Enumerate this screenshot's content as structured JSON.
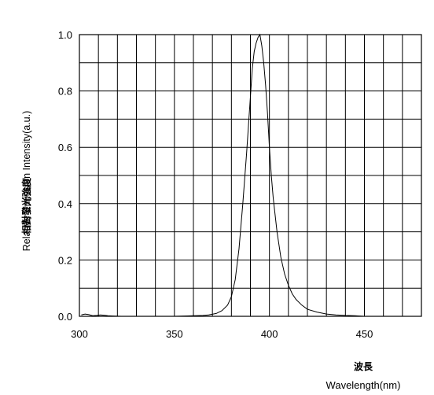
{
  "chart_data": {
    "type": "line",
    "xlabel_jp": "波長",
    "xlabel": "Wavelength(nm)",
    "ylabel_jp": "相對發光強度",
    "ylabel": "Relative Emission Intensity(a.u.)",
    "xlim": [
      300,
      480
    ],
    "ylim": [
      0.0,
      1.0
    ],
    "x_ticks": [
      300,
      350,
      400,
      450
    ],
    "x_tick_labels": [
      "300",
      "350",
      "400",
      "450"
    ],
    "y_ticks": [
      0.0,
      0.2,
      0.4,
      0.6,
      0.8,
      1.0
    ],
    "y_tick_labels": [
      "0.0",
      "0.2",
      "0.4",
      "0.6",
      "0.8",
      "1.0"
    ],
    "grid": true,
    "series": [
      {
        "color": "#000000",
        "x": [
          301,
          303,
          305,
          307,
          309,
          311,
          313,
          315,
          318,
          322,
          330,
          340,
          350,
          360,
          365,
          368,
          372,
          375,
          378,
          380,
          382,
          384,
          386,
          388,
          390,
          391,
          392,
          393,
          394,
          395,
          396,
          397,
          398,
          399,
          400,
          401,
          402,
          404,
          406,
          408,
          410,
          412,
          414,
          417,
          420,
          425,
          430,
          435,
          440,
          445,
          450
        ],
        "y": [
          0.005,
          0.008,
          0.006,
          0.002,
          0.003,
          0.005,
          0.004,
          0.002,
          0.001,
          0.0,
          0.0,
          0.0,
          0.0,
          0.002,
          0.003,
          0.005,
          0.01,
          0.02,
          0.04,
          0.07,
          0.13,
          0.24,
          0.4,
          0.58,
          0.78,
          0.88,
          0.94,
          0.97,
          0.99,
          1.0,
          0.96,
          0.9,
          0.82,
          0.72,
          0.6,
          0.5,
          0.42,
          0.3,
          0.21,
          0.15,
          0.11,
          0.08,
          0.06,
          0.04,
          0.025,
          0.015,
          0.008,
          0.005,
          0.003,
          0.002,
          0.0
        ]
      }
    ]
  }
}
